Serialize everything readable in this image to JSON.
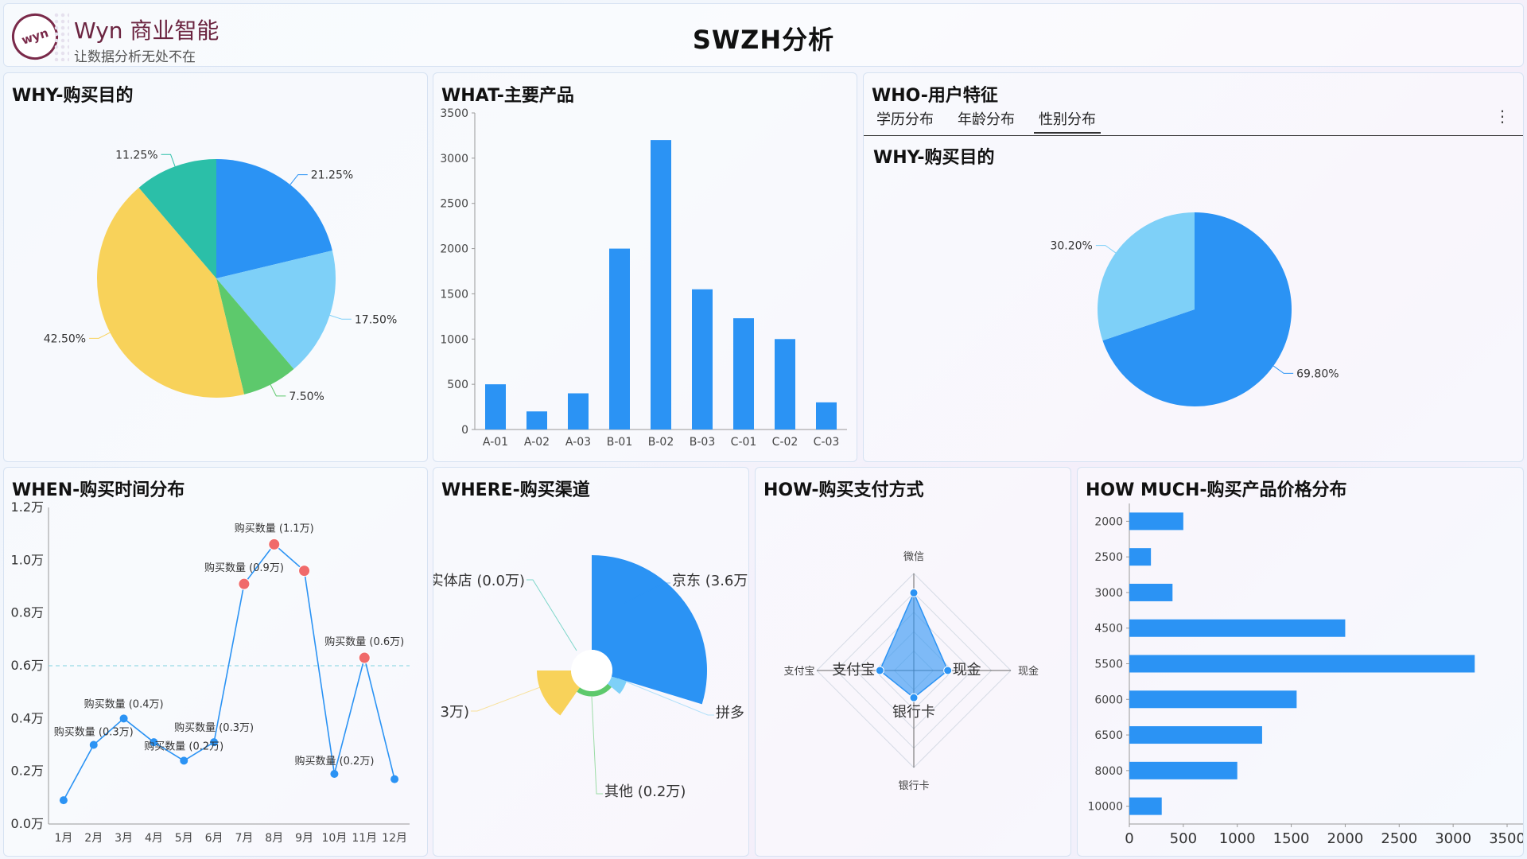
{
  "header": {
    "logo_text": "wyn",
    "brand_title": "Wyn 商业智能",
    "brand_subtitle": "让数据分析无处不在",
    "page_title": "SWZH分析"
  },
  "colors": {
    "blue": "#2b93f4",
    "light_blue": "#7ed0f8",
    "green": "#5dc96c",
    "yellow": "#f8d25a",
    "teal": "#2bbfa8",
    "red": "#f06a6a"
  },
  "why": {
    "title": "WHY-购买目的",
    "chart_data": {
      "type": "pie",
      "slices": [
        {
          "label": "21.25%",
          "value": 21.25,
          "color": "#2b93f4"
        },
        {
          "label": "17.50%",
          "value": 17.5,
          "color": "#7ed0f8"
        },
        {
          "label": "7.50%",
          "value": 7.5,
          "color": "#5dc96c"
        },
        {
          "label": "42.50%",
          "value": 42.5,
          "color": "#f8d25a"
        },
        {
          "label": "11.25%",
          "value": 11.25,
          "color": "#2bbfa8"
        }
      ]
    }
  },
  "what": {
    "title": "WHAT-主要产品",
    "chart_data": {
      "type": "bar",
      "categories": [
        "A-01",
        "A-02",
        "A-03",
        "B-01",
        "B-02",
        "B-03",
        "C-01",
        "C-02",
        "C-03"
      ],
      "values": [
        500,
        200,
        400,
        2000,
        3200,
        1550,
        1230,
        1000,
        300
      ],
      "ylim": [
        0,
        3500
      ],
      "yticks": [
        "0",
        "500",
        "1000",
        "1500",
        "2000",
        "2500",
        "3000",
        "3500"
      ]
    }
  },
  "who": {
    "title": "WHO-用户特征",
    "tabs": [
      "学历分布",
      "年龄分布",
      "性别分布"
    ],
    "active_tab": 2,
    "more_icon": "⋮",
    "sub_title": "WHY-购买目的",
    "chart_data": {
      "type": "pie",
      "slices": [
        {
          "label": "69.80%",
          "value": 69.8,
          "color": "#2b93f4"
        },
        {
          "label": "30.20%",
          "value": 30.2,
          "color": "#7ed0f8"
        }
      ]
    }
  },
  "when": {
    "title": "WHEN-购买时间分布",
    "chart_data": {
      "type": "line",
      "categories": [
        "1月",
        "2月",
        "3月",
        "4月",
        "5月",
        "6月",
        "7月",
        "8月",
        "9月",
        "10月",
        "11月",
        "12月"
      ],
      "values": [
        0.09,
        0.3,
        0.4,
        0.31,
        0.24,
        0.31,
        0.91,
        1.06,
        0.96,
        0.19,
        0.63,
        0.17
      ],
      "highlight": [
        false,
        false,
        false,
        false,
        false,
        false,
        true,
        true,
        true,
        false,
        true,
        false
      ],
      "ylim": [
        0,
        1.2
      ],
      "yticks": [
        "0.0万",
        "0.2万",
        "0.4万",
        "0.6万",
        "0.8万",
        "1.0万",
        "1.2万"
      ],
      "reference_line": 0.6,
      "annotations": [
        {
          "index": 1,
          "text": "购买数量 (0.3万)"
        },
        {
          "index": 2,
          "text": "购买数量 (0.4万)"
        },
        {
          "index": 4,
          "text": "购买数量 (0.2万)"
        },
        {
          "index": 5,
          "text": "购买数量 (0.3万)"
        },
        {
          "index": 6,
          "text": "购买数量 (0.9万)"
        },
        {
          "index": 7,
          "text": "购买数量 (1.1万)"
        },
        {
          "index": 9,
          "text": "购买数量 (0.2万)"
        },
        {
          "index": 10,
          "text": "购买数量 (0.6万)"
        }
      ]
    }
  },
  "where": {
    "title": "WHERE-购买渠道",
    "chart_data": {
      "type": "rose",
      "slices": [
        {
          "label": "京东 (3.6万",
          "value": 3.6,
          "color": "#2b93f4"
        },
        {
          "label": "拼多",
          "value": 0.6,
          "color": "#7ed0f8"
        },
        {
          "label": "其他 (0.2万)",
          "value": 0.2,
          "color": "#5dc96c"
        },
        {
          "label": "3万)",
          "value": 1.3,
          "color": "#f8d25a"
        },
        {
          "label": "实体店 (0.0万)",
          "value": 0.0,
          "color": "#2bbfa8"
        }
      ]
    }
  },
  "how": {
    "title": "HOW-购买支付方式",
    "chart_data": {
      "type": "radar",
      "axes": [
        "微信",
        "现金",
        "银行卡",
        "支付宝"
      ],
      "values": [
        0.8,
        0.35,
        0.28,
        0.35
      ],
      "point_labels": [
        "",
        "现金",
        "银行卡",
        "支付宝"
      ]
    }
  },
  "howmuch": {
    "title": "HOW MUCH-购买产品价格分布",
    "chart_data": {
      "type": "bar-horizontal",
      "categories": [
        "2000",
        "2500",
        "3000",
        "4500",
        "5500",
        "6000",
        "6500",
        "8000",
        "10000"
      ],
      "values": [
        500,
        200,
        400,
        2000,
        3200,
        1550,
        1230,
        1000,
        300
      ],
      "xlim": [
        0,
        3500
      ],
      "xticks": [
        "0",
        "500",
        "1000",
        "1500",
        "2000",
        "2500",
        "3000",
        "3500"
      ]
    }
  }
}
